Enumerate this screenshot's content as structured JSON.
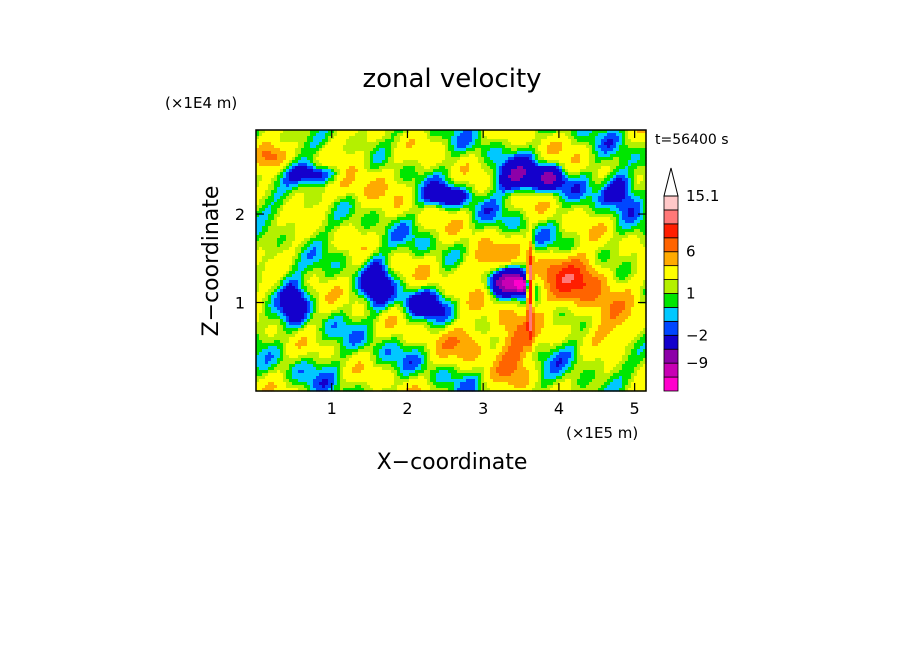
{
  "chart_data": {
    "type": "heatmap",
    "title": "zonal velocity",
    "xlabel": "X−coordinate",
    "ylabel": "Z−coordinate",
    "x_scale_label": "(×1E5 m)",
    "y_scale_label": "(×1E4 m)",
    "time_label": "t=56400 s",
    "xlim": [
      0,
      5.15
    ],
    "ylim": [
      0,
      2.95
    ],
    "x_ticks": [
      {
        "value": 1,
        "label": "1"
      },
      {
        "value": 2,
        "label": "2"
      },
      {
        "value": 3,
        "label": "3"
      },
      {
        "value": 4,
        "label": "4"
      },
      {
        "value": 5,
        "label": "5"
      }
    ],
    "y_ticks": [
      {
        "value": 1,
        "label": "1"
      },
      {
        "value": 2,
        "label": "2"
      }
    ],
    "colorbar": {
      "levels": [
        -15,
        -12,
        -9,
        -6,
        -2,
        -1,
        0,
        1,
        2,
        4,
        6,
        9,
        12,
        15.1
      ],
      "colors": [
        "#ff00cc",
        "#c800b4",
        "#8c00a8",
        "#1400cc",
        "#0046ff",
        "#00c8ff",
        "#00e600",
        "#b4f000",
        "#ffff00",
        "#ffaa00",
        "#ff6400",
        "#ff1e00",
        "#ff7878",
        "#ffc8c8"
      ],
      "extend_max_color": "#ffffff",
      "labels": [
        {
          "value": -9,
          "label": "−9"
        },
        {
          "value": -2,
          "label": "−2"
        },
        {
          "value": 1,
          "label": "1"
        },
        {
          "value": 6,
          "label": "6"
        },
        {
          "value": 15.1,
          "label": "15.1"
        }
      ]
    },
    "field_features": [
      {
        "x": 3.3,
        "z": 1.25,
        "u": -11,
        "sx": 0.18,
        "sz": 0.12
      },
      {
        "x": 3.5,
        "z": 1.2,
        "u": -14,
        "sx": 0.05,
        "sz": 0.05
      },
      {
        "x": 3.62,
        "z": 1.15,
        "u": 13,
        "sx": 0.025,
        "sz": 0.35
      },
      {
        "x": 4.2,
        "z": 1.25,
        "u": 8,
        "sx": 0.3,
        "sz": 0.2
      },
      {
        "x": 3.0,
        "z": 1.4,
        "u": 5,
        "sx": 0.25,
        "sz": 0.15
      },
      {
        "x": 3.45,
        "z": 2.4,
        "u": -7,
        "sx": 0.25,
        "sz": 0.12
      },
      {
        "x": 3.9,
        "z": 2.4,
        "u": -6,
        "sx": 0.12,
        "sz": 0.1
      },
      {
        "x": 2.5,
        "z": 2.2,
        "u": -6,
        "sx": 0.18,
        "sz": 0.08
      },
      {
        "x": 0.8,
        "z": 2.45,
        "u": -6,
        "sx": 0.25,
        "sz": 0.08
      },
      {
        "x": 1.3,
        "z": 2.4,
        "u": 3,
        "sx": 0.3,
        "sz": 0.2
      },
      {
        "x": 1.6,
        "z": 1.2,
        "u": -5,
        "sx": 0.12,
        "sz": 0.25
      },
      {
        "x": 2.2,
        "z": 1.0,
        "u": -4,
        "sx": 0.2,
        "sz": 0.12
      },
      {
        "x": 0.5,
        "z": 1.0,
        "u": -5,
        "sx": 0.12,
        "sz": 0.2
      },
      {
        "x": 3.4,
        "z": 0.5,
        "u": 6,
        "sx": 0.18,
        "sz": 0.25
      },
      {
        "x": 4.8,
        "z": 2.3,
        "u": -7,
        "sx": 0.15,
        "sz": 0.15
      },
      {
        "x": 4.7,
        "z": 0.8,
        "u": 3,
        "sx": 0.3,
        "sz": 0.2
      },
      {
        "x": 2.8,
        "z": 0.6,
        "u": 4,
        "sx": 0.2,
        "sz": 0.15
      },
      {
        "x": 1.0,
        "z": 0.3,
        "u": -1,
        "sx": 0.4,
        "sz": 0.15
      },
      {
        "x": 4.2,
        "z": 0.4,
        "u": -2,
        "sx": 0.2,
        "sz": 0.12
      },
      {
        "x": 0.2,
        "z": 2.65,
        "u": 5,
        "sx": 0.15,
        "sz": 0.1
      }
    ]
  }
}
